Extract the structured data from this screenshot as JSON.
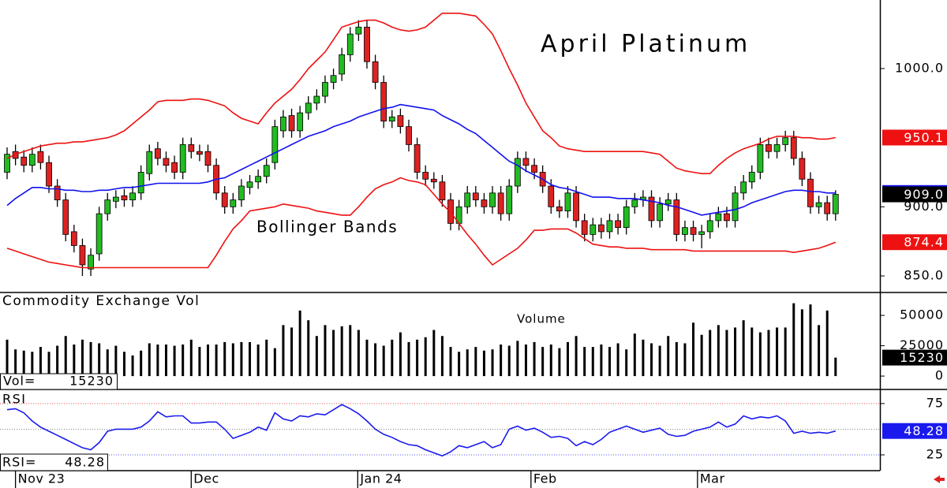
{
  "chart_data": [
    {
      "type": "candlestick",
      "title": "April Platinum",
      "annotation": "Bollinger Bands",
      "up_color": "#22bb22",
      "down_color": "#dd2222",
      "ylim": [
        838.6,
        1049.6
      ],
      "yticks": [
        {
          "value": 850,
          "label": "850.0"
        },
        {
          "value": 900,
          "label": "900.0"
        },
        {
          "value": 1000,
          "label": "1000.0"
        }
      ],
      "candles": {
        "open": [
          925,
          940,
          936,
          930,
          940,
          932,
          915,
          905,
          882,
          872,
          855,
          866,
          895,
          904,
          908,
          905,
          910,
          924,
          942,
          935,
          932,
          925,
          945,
          940,
          940,
          930,
          910,
          900,
          905,
          914,
          918,
          922,
          932,
          955,
          966,
          955,
          968,
          975,
          980,
          990,
          996,
          1010,
          1025,
          1030,
          1005,
          990,
          962,
          966,
          958,
          945,
          925,
          920,
          918,
          905,
          888,
          900,
          910,
          905,
          900,
          910,
          895,
          915,
          935,
          930,
          925,
          915,
          900,
          897,
          910,
          890,
          880,
          887,
          882,
          890,
          885,
          900,
          905,
          907,
          890,
          902,
          905,
          880,
          885,
          880,
          882,
          890,
          895,
          890,
          910,
          918,
          925,
          945,
          940,
          945,
          950,
          935,
          920,
          900,
          903,
          895
        ],
        "high": [
          943,
          945,
          941,
          943,
          945,
          937,
          920,
          910,
          887,
          877,
          870,
          900,
          910,
          912,
          913,
          915,
          930,
          945,
          947,
          940,
          937,
          950,
          950,
          945,
          945,
          935,
          915,
          910,
          920,
          923,
          927,
          935,
          963,
          970,
          971,
          973,
          980,
          985,
          995,
          1000,
          1015,
          1030,
          1035,
          1035,
          1010,
          995,
          970,
          971,
          963,
          950,
          930,
          925,
          923,
          910,
          905,
          915,
          915,
          910,
          915,
          915,
          920,
          940,
          940,
          935,
          930,
          920,
          905,
          915,
          915,
          895,
          892,
          892,
          895,
          895,
          905,
          910,
          912,
          912,
          907,
          910,
          910,
          890,
          890,
          887,
          895,
          900,
          900,
          915,
          923,
          930,
          950,
          950,
          950,
          955,
          955,
          940,
          925,
          908,
          908,
          912
        ],
        "low": [
          920,
          930,
          925,
          925,
          927,
          910,
          900,
          875,
          867,
          850,
          850,
          861,
          890,
          899,
          900,
          900,
          905,
          919,
          930,
          925,
          920,
          920,
          935,
          933,
          925,
          905,
          895,
          895,
          900,
          909,
          913,
          917,
          927,
          950,
          950,
          950,
          963,
          970,
          975,
          985,
          991,
          1005,
          1020,
          1000,
          985,
          957,
          957,
          953,
          940,
          920,
          915,
          913,
          900,
          883,
          883,
          895,
          900,
          895,
          895,
          890,
          890,
          910,
          925,
          920,
          910,
          895,
          892,
          892,
          885,
          875,
          875,
          877,
          877,
          880,
          880,
          895,
          900,
          885,
          885,
          897,
          875,
          875,
          875,
          870,
          877,
          885,
          885,
          885,
          905,
          913,
          920,
          935,
          935,
          940,
          930,
          915,
          895,
          895,
          890,
          890
        ],
        "values": [
          938,
          935,
          930,
          938,
          932,
          915,
          905,
          880,
          872,
          858,
          865,
          895,
          905,
          907,
          905,
          910,
          925,
          940,
          935,
          930,
          925,
          945,
          940,
          938,
          930,
          910,
          900,
          905,
          915,
          918,
          922,
          930,
          958,
          965,
          955,
          968,
          975,
          980,
          990,
          995,
          1010,
          1025,
          1030,
          1005,
          990,
          962,
          965,
          958,
          945,
          925,
          920,
          918,
          905,
          888,
          900,
          910,
          905,
          900,
          910,
          895,
          915,
          935,
          930,
          925,
          915,
          900,
          897,
          910,
          890,
          880,
          887,
          882,
          890,
          885,
          900,
          905,
          907,
          890,
          902,
          905,
          880,
          885,
          880,
          882,
          890,
          895,
          890,
          910,
          918,
          925,
          945,
          940,
          945,
          950,
          935,
          920,
          900,
          903,
          895,
          909
        ],
        "value_labels": [
          null,
          null,
          null,
          null,
          null,
          null,
          null,
          null,
          null,
          null,
          null,
          null,
          null,
          null,
          null,
          null,
          null,
          null,
          null,
          null,
          null,
          null,
          null,
          null,
          null,
          null,
          null,
          null,
          null,
          null,
          null,
          null,
          null,
          null,
          null,
          null,
          null,
          null,
          null,
          null,
          null,
          null,
          null,
          null,
          null,
          null,
          null,
          null,
          null,
          null,
          null,
          null,
          null,
          null,
          null,
          null,
          null,
          null,
          null,
          null,
          null,
          null,
          null,
          null,
          null,
          null,
          null,
          null,
          null,
          null,
          null,
          null,
          null,
          null,
          null,
          null,
          null,
          null,
          null,
          null,
          null,
          null,
          null,
          null,
          null,
          null,
          null,
          null,
          null,
          null,
          null,
          null,
          null,
          null,
          null,
          null,
          null,
          null,
          null,
          "909.0"
        ]
      },
      "bands": [
        {
          "color": "#ee1111",
          "values": [
            935,
            938,
            940,
            942,
            944,
            945,
            946,
            946,
            947,
            947,
            948,
            949,
            950,
            952,
            955,
            960,
            965,
            970,
            976,
            977,
            977,
            977,
            978,
            978,
            977,
            975,
            973,
            968,
            964,
            962,
            960,
            968,
            975,
            980,
            985,
            992,
            1000,
            1006,
            1012,
            1021,
            1030,
            1032,
            1034,
            1035,
            1035,
            1033,
            1030,
            1028,
            1027,
            1028,
            1030,
            1035,
            1040,
            1040,
            1040,
            1039,
            1038,
            1032,
            1025,
            1013,
            1000,
            988,
            975,
            965,
            955,
            950,
            944,
            942,
            941,
            940,
            940,
            940,
            940,
            940,
            940,
            940,
            940,
            939,
            938,
            933,
            928,
            926,
            925,
            924,
            924,
            930,
            935,
            939,
            942,
            944,
            946,
            949,
            951,
            951,
            951,
            950,
            950,
            949,
            949,
            950.1
          ]
        },
        {
          "color": "#1111ee",
          "values": [
            901,
            906,
            910,
            914,
            914,
            913,
            913,
            912,
            912,
            911,
            911,
            912,
            912,
            913,
            914,
            914,
            915,
            916,
            917,
            917,
            917,
            917,
            917,
            917,
            918,
            920,
            921,
            924,
            927,
            930,
            933,
            936,
            939,
            942,
            945,
            948,
            951,
            953,
            955,
            958,
            960,
            962,
            965,
            967,
            969,
            971,
            972,
            974,
            973,
            972,
            971,
            970,
            966,
            963,
            960,
            956,
            953,
            948,
            943,
            938,
            933,
            930,
            926,
            923,
            920,
            916,
            914,
            913,
            911,
            909,
            907,
            907,
            907,
            906,
            906,
            906,
            905,
            904,
            903,
            901,
            900,
            898,
            896,
            894,
            895,
            896,
            897,
            898,
            900,
            903,
            905,
            907,
            909,
            911,
            912,
            912,
            911,
            911,
            910,
            910
          ]
        },
        {
          "color": "#ee1111",
          "values": [
            870,
            868,
            866,
            864,
            862,
            860,
            859,
            858,
            857,
            856,
            856,
            856,
            856,
            856,
            856,
            856,
            856,
            856,
            856,
            856,
            856,
            856,
            856,
            856,
            856,
            865,
            875,
            884,
            890,
            897,
            898,
            899,
            900,
            902,
            901,
            900,
            899,
            897,
            896,
            895,
            894,
            894,
            900,
            907,
            913,
            916,
            918,
            921,
            919,
            918,
            916,
            909,
            902,
            896,
            888,
            880,
            873,
            865,
            858,
            862,
            866,
            870,
            876,
            883,
            883,
            884,
            884,
            884,
            881,
            877,
            873,
            872,
            871,
            871,
            870,
            870,
            870,
            869,
            869,
            869,
            869,
            869,
            868,
            868,
            868,
            868,
            868,
            868,
            868,
            868,
            868,
            868,
            868,
            868,
            867,
            868,
            869,
            870,
            872,
            874.4
          ]
        }
      ]
    },
    {
      "type": "bar",
      "title": "Commodity Exchange Vol",
      "subtitle": "Volume",
      "value_prefix": "Vol=",
      "color": "#000000",
      "ylim": [
        -11000,
        68200
      ],
      "yticks": [
        0,
        25000,
        50000
      ],
      "values": [
        30000,
        22000,
        21000,
        20000,
        24000,
        20000,
        25000,
        33000,
        26000,
        30000,
        28000,
        27000,
        22000,
        25000,
        20000,
        17000,
        21000,
        27000,
        26000,
        26000,
        25000,
        26000,
        30000,
        24000,
        26000,
        26000,
        28000,
        27000,
        28000,
        28000,
        26000,
        30000,
        23000,
        42000,
        40000,
        54000,
        46000,
        33000,
        42000,
        38000,
        41000,
        42000,
        38000,
        30000,
        27000,
        25000,
        30000,
        36000,
        28000,
        30000,
        32000,
        38000,
        33000,
        24000,
        20000,
        22000,
        24000,
        21000,
        22000,
        26000,
        25000,
        29000,
        26000,
        28000,
        24000,
        26000,
        23000,
        28000,
        33000,
        24000,
        24000,
        26000,
        24000,
        27000,
        22000,
        35000,
        30000,
        27000,
        25000,
        33000,
        28000,
        27000,
        44000,
        34000,
        38000,
        42000,
        38000,
        40000,
        46000,
        40000,
        36000,
        38000,
        40000,
        40000,
        60000,
        55000,
        59000,
        42000,
        54000,
        15230
      ]
    },
    {
      "type": "line",
      "title": "RSI",
      "value_prefix": "RSI=",
      "color": "#1a1aee",
      "ylim": [
        9.6,
        88
      ],
      "yticks": [
        25,
        75
      ],
      "reference_lines": [
        {
          "value": 75,
          "color": "#ee5555"
        },
        {
          "value": 50,
          "color": "#888888"
        },
        {
          "value": 25,
          "color": "#5555ee"
        }
      ],
      "xlim": [
        -0.85,
        104.3
      ],
      "xticks": [
        {
          "value": 1,
          "label": "Nov 23"
        },
        {
          "value": 22,
          "label": "Dec"
        },
        {
          "value": 41.9,
          "label": "Jan 24"
        },
        {
          "value": 62.6,
          "label": "Feb"
        },
        {
          "value": 82.5,
          "label": "Mar"
        }
      ],
      "values": [
        69,
        70,
        66,
        58,
        52,
        48,
        44,
        40,
        36,
        32,
        30,
        37,
        48,
        50,
        50,
        50,
        52,
        58,
        67,
        62,
        63,
        63,
        56,
        56,
        57,
        57,
        50,
        41,
        44,
        47,
        52,
        49,
        66,
        60,
        58,
        63,
        62,
        65,
        64,
        69,
        74,
        70,
        65,
        58,
        50,
        45,
        42,
        38,
        35,
        34,
        30,
        27,
        24,
        28,
        34,
        32,
        35,
        38,
        32,
        35,
        50,
        53,
        49,
        51,
        47,
        42,
        43,
        41,
        34,
        38,
        35,
        40,
        47,
        50,
        53,
        50,
        47,
        49,
        51,
        45,
        43,
        44,
        48,
        50,
        52,
        57,
        52,
        55,
        63,
        60,
        62,
        61,
        63,
        58,
        46,
        48,
        46,
        47,
        46,
        48.28
      ]
    }
  ]
}
